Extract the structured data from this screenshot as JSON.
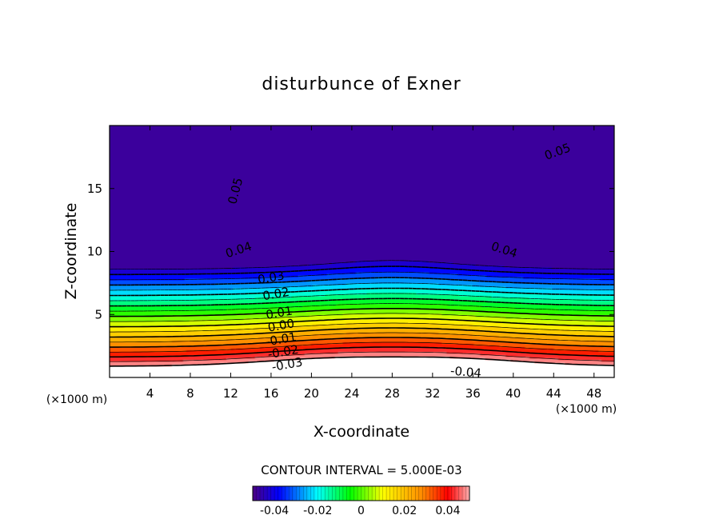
{
  "chart_data": {
    "type": "heatmap",
    "title": "disturbunce of Exner",
    "xlabel": "X-coordinate",
    "ylabel": "Z-coordinate",
    "x_unit": "(×1000 m)",
    "x_unit_right": "(×1000 m)",
    "xlim": [
      0,
      50
    ],
    "ylim": [
      0,
      20
    ],
    "x_ticks": [
      4,
      8,
      12,
      16,
      20,
      24,
      28,
      32,
      36,
      40,
      44,
      48
    ],
    "x_tick_labels": [
      "4",
      "8",
      "12",
      "16",
      "20",
      "24",
      "28",
      "32",
      "36",
      "40",
      "44",
      "48"
    ],
    "y_ticks": [
      5,
      10,
      15
    ],
    "y_tick_labels": [
      "5",
      "10",
      "15"
    ],
    "contour_interval_label": "CONTOUR INTERVAL = 5.000E-03",
    "contour_interval": 0.005,
    "value_range": [
      -0.05,
      0.05
    ],
    "colorbar_ticks": [
      -0.04,
      -0.02,
      0,
      0.02,
      0.04
    ],
    "colorbar_tick_labels": [
      "-0.04",
      "-0.02",
      "0",
      "0.02",
      "0.04"
    ],
    "contour_labels": [
      {
        "text": "0.05",
        "x": 12.5,
        "z": 14.8,
        "angle": -75
      },
      {
        "text": "0.05",
        "x": 44.4,
        "z": 17.9,
        "angle": -20
      },
      {
        "text": "0.04",
        "x": 12.8,
        "z": 10.1,
        "angle": -18
      },
      {
        "text": "0.04",
        "x": 39.1,
        "z": 10.1,
        "angle": 18
      },
      {
        "text": "0.03",
        "x": 16.0,
        "z": 7.9,
        "angle": -10
      },
      {
        "text": "0.02",
        "x": 16.5,
        "z": 6.6,
        "angle": -10
      },
      {
        "text": "0.01",
        "x": 16.8,
        "z": 5.1,
        "angle": -10
      },
      {
        "text": "0.00",
        "x": 17.0,
        "z": 4.1,
        "angle": -10
      },
      {
        "text": "-0.01",
        "x": 17.0,
        "z": 3.0,
        "angle": -10
      },
      {
        "text": "-0.02",
        "x": 17.2,
        "z": 2.0,
        "angle": -10
      },
      {
        "text": "-0.03",
        "x": 17.6,
        "z": 1.0,
        "angle": -10
      },
      {
        "text": "-0.04",
        "x": 35.3,
        "z": 0.4,
        "angle": 5
      }
    ]
  }
}
